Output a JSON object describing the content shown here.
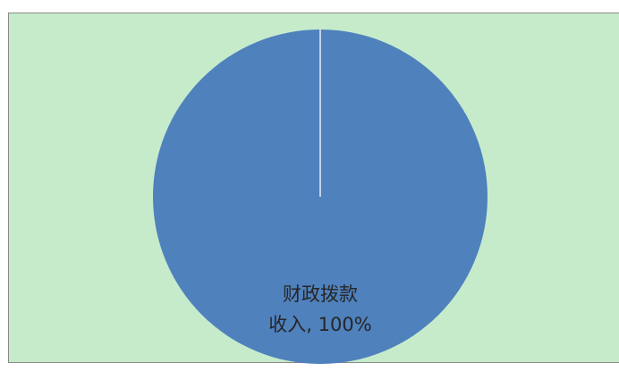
{
  "chart_data": {
    "type": "pie",
    "slices": [
      {
        "label_line1": "财政拨款",
        "label_line2": "收入, 100%",
        "value": 100,
        "color": "#4f81bd"
      }
    ],
    "legend": "none"
  },
  "colors": {
    "plot_background": "#c6ebcb",
    "slice_border": "#e6eef8"
  }
}
